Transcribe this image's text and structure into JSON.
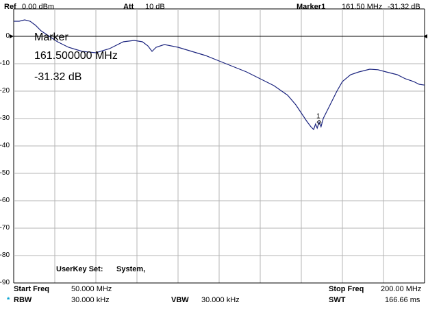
{
  "header": {
    "ref_label": "Ref",
    "ref_value": "0.00 dBm",
    "att_label": "Att",
    "att_value": "10 dB",
    "marker_label": "Marker1",
    "marker_freq": "161.50 MHz",
    "marker_level": "-31.32 dB"
  },
  "marker_box": {
    "title": "Marker",
    "freq": "161.500000 MHz",
    "level": "-31.32 dB",
    "id": "1"
  },
  "userkey": {
    "label": "UserKey Set:",
    "value": "System,"
  },
  "footer": {
    "start_label": "Start Freq",
    "start_value": "50.000 MHz",
    "stop_label": "Stop Freq",
    "stop_value": "200.00 MHz",
    "rbw_star": "*",
    "rbw_label": "RBW",
    "rbw_value": "30.000 kHz",
    "vbw_label": "VBW",
    "vbw_value": "30.000 kHz",
    "swt_label": "SWT",
    "swt_value": "166.66 ms"
  },
  "y_ticks": [
    "0",
    "-10",
    "-20",
    "-30",
    "-40",
    "-50",
    "-60",
    "-70",
    "-80",
    "-90"
  ],
  "colors": {
    "trace": "#1a237e",
    "grid": "#b4b4b4",
    "rbw_star": "#00a0d0"
  },
  "chart_data": {
    "type": "line",
    "x_unit": "MHz",
    "y_unit": "dB",
    "xlim": [
      50,
      200
    ],
    "ylim": [
      -90,
      10
    ],
    "grid": true,
    "series": [
      {
        "x": [
          50,
          52,
          54,
          56,
          58,
          60,
          63,
          66,
          70,
          75,
          80,
          85,
          90,
          94,
          97,
          99,
          100.5,
          102,
          105,
          110,
          115,
          120,
          125,
          130,
          135,
          140,
          145,
          150,
          153,
          155,
          157,
          158.5,
          159.5,
          160.2,
          160.8,
          161.5,
          162.2,
          163,
          164.5,
          166,
          168,
          170,
          173,
          176,
          180,
          183,
          186,
          190,
          193,
          196,
          198,
          200
        ],
        "y": [
          5.5,
          5.5,
          6,
          5.5,
          4,
          2,
          0,
          -2,
          -4,
          -5.5,
          -6,
          -4.5,
          -2,
          -1.5,
          -2,
          -3.5,
          -5.5,
          -4,
          -3,
          -4,
          -5.5,
          -7,
          -9,
          -11,
          -13,
          -15.5,
          -18,
          -21.5,
          -25,
          -28,
          -31,
          -33,
          -34,
          -32,
          -33.5,
          -31.3,
          -33,
          -30,
          -27,
          -24,
          -20,
          -16.5,
          -14,
          -13,
          -12,
          -12.2,
          -13,
          -14,
          -15.5,
          -16.5,
          -17.5,
          -17.8
        ]
      }
    ]
  }
}
